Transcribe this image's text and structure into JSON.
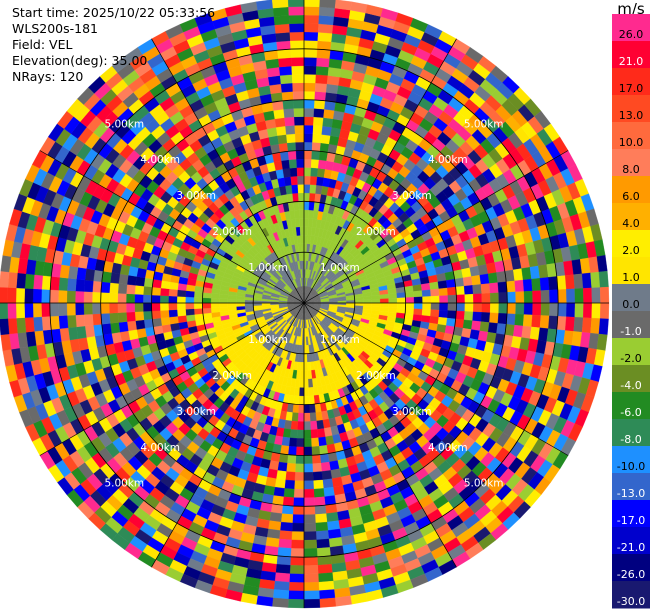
{
  "header": {
    "start_time": "Start time: 2025/10/22 05:33:56",
    "instrument": "WLS200s-181",
    "field": "Field: VEL",
    "elevation": "Elevation(deg): 35.00",
    "nrays": "NRays: 120"
  },
  "colorbar": {
    "unit": "m/s",
    "levels": [
      {
        "label": "26.0",
        "color": "#ff2a8f"
      },
      {
        "label": "21.0",
        "color": "#ff0033"
      },
      {
        "label": "17.0",
        "color": "#ff2a1a"
      },
      {
        "label": "13.0",
        "color": "#ff4a22"
      },
      {
        "label": "10.0",
        "color": "#ff6a3d"
      },
      {
        "label": "8.0",
        "color": "#ff7d5a"
      },
      {
        "label": "6.0",
        "color": "#ff9a00"
      },
      {
        "label": "4.0",
        "color": "#ffb000"
      },
      {
        "label": "2.0",
        "color": "#ffee00"
      },
      {
        "label": "1.0",
        "color": "#ffe500"
      },
      {
        "label": "0.0",
        "color": "#6f7b8a"
      },
      {
        "label": "-1.0",
        "color": "#6a6a6a"
      },
      {
        "label": "-2.0",
        "color": "#9acd32"
      },
      {
        "label": "-4.0",
        "color": "#6b8e23"
      },
      {
        "label": "-6.0",
        "color": "#228b22"
      },
      {
        "label": "-8.0",
        "color": "#2e8b57"
      },
      {
        "label": "-10.0",
        "color": "#1e90ff"
      },
      {
        "label": "-13.0",
        "color": "#3366cc"
      },
      {
        "label": "-17.0",
        "color": "#0000ff"
      },
      {
        "label": "-21.0",
        "color": "#0000cd"
      },
      {
        "label": "-26.0",
        "color": "#000080"
      },
      {
        "label": "-30.0",
        "color": "#191970"
      }
    ]
  },
  "chart_data": {
    "type": "heatmap",
    "projection": "polar PPI",
    "field": "VEL",
    "units": "m/s",
    "n_rays": 120,
    "range_rings_km": [
      1.0,
      2.0,
      3.0,
      4.0,
      5.0
    ],
    "ring_labels": [
      "1.00km",
      "2.00km",
      "3.00km",
      "4.00km",
      "5.00km"
    ],
    "max_range_km": 6.0,
    "azimuth_spokes_deg": [
      0,
      30,
      60,
      90,
      120,
      150,
      180,
      210,
      240,
      270,
      300,
      330
    ],
    "regions": [
      {
        "range_km": [
          0,
          0.4
        ],
        "velocity_ms": -1.0
      },
      {
        "range_km": [
          0.4,
          1.8
        ],
        "sector": "north",
        "velocity_ms": -2.0
      },
      {
        "range_km": [
          0.4,
          1.8
        ],
        "sector": "south",
        "velocity_ms": 1.0
      },
      {
        "range_km": [
          0.4,
          1.2
        ],
        "velocity_ms": 0.0
      },
      {
        "range_km": [
          1.8,
          6.0
        ],
        "velocity_ms": "random (noise)"
      }
    ]
  }
}
